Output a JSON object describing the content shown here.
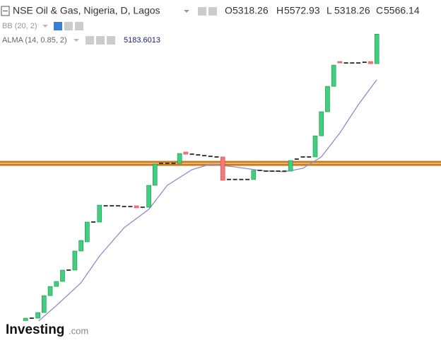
{
  "header": {
    "title": "NSE Oil & Gas, Nigeria, D, Lagos",
    "ohlc": [
      {
        "label": "O",
        "value": 5318.26
      },
      {
        "label": "H",
        "value": 5572.93
      },
      {
        "label": "L",
        "value": 5318.26
      },
      {
        "label": "C",
        "value": 5566.14
      }
    ],
    "indicator": "BB (20, 2)"
  },
  "logo": {
    "brand": "Investing",
    "suffix": ".com"
  },
  "chart_data": {
    "type": "candlestick",
    "ylim": [
      2917,
      5852
    ],
    "up_color": "#3fcf7f",
    "down_color": "#f47a7a",
    "flat_color": "#3a3a3a",
    "open": [
      3118,
      3118,
      3118,
      3124,
      3184,
      3184,
      3231,
      3373,
      3450,
      3492,
      3587,
      3587,
      3747,
      3824,
      3990,
      3990,
      4126,
      4126,
      4126,
      4120,
      4120,
      4126,
      4114,
      4114,
      4298,
      4482,
      4482,
      4482,
      4482,
      4577,
      4559,
      4553,
      4547,
      4541,
      4536,
      4536,
      4347,
      4347,
      4347,
      4347,
      4347,
      4423,
      4417,
      4417,
      4417,
      4417,
      4417,
      4518,
      4536,
      4536,
      4536,
      4713,
      4915,
      5128,
      5336,
      5324,
      5324,
      5324,
      5330,
      5336,
      5318.26
    ],
    "close": [
      3118,
      3118,
      3118,
      3184,
      3184,
      3231,
      3373,
      3450,
      3492,
      3587,
      3587,
      3747,
      3836,
      3990,
      3990,
      4132,
      4126,
      4126,
      4126,
      4120,
      4120,
      4109,
      4114,
      4298,
      4476,
      4482,
      4482,
      4482,
      4565,
      4559,
      4559,
      4553,
      4547,
      4541,
      4536,
      4340,
      4347,
      4347,
      4347,
      4347,
      4423,
      4423,
      4417,
      4417,
      4417,
      4417,
      4506,
      4518,
      4536,
      4536,
      4713,
      4915,
      5128,
      5306,
      5324,
      5324,
      5324,
      5324,
      5330,
      5318,
      5566.14
    ],
    "series": [
      {
        "name": "ALMA (14, 0.85, 2)",
        "color": "#8f8cc9",
        "x": [
          0,
          5,
          8,
          12,
          15,
          19,
          23,
          26,
          30,
          33,
          37,
          41,
          45,
          48,
          51,
          54,
          57,
          60
        ],
        "values": [
          3095,
          3154,
          3290,
          3480,
          3705,
          3943,
          4097,
          4298,
          4429,
          4476,
          4452,
          4423,
          4411,
          4441,
          4536,
          4737,
          4974,
          5183.6013
        ]
      }
    ],
    "hline": {
      "value": 4482,
      "color": "#c97a1e"
    }
  }
}
